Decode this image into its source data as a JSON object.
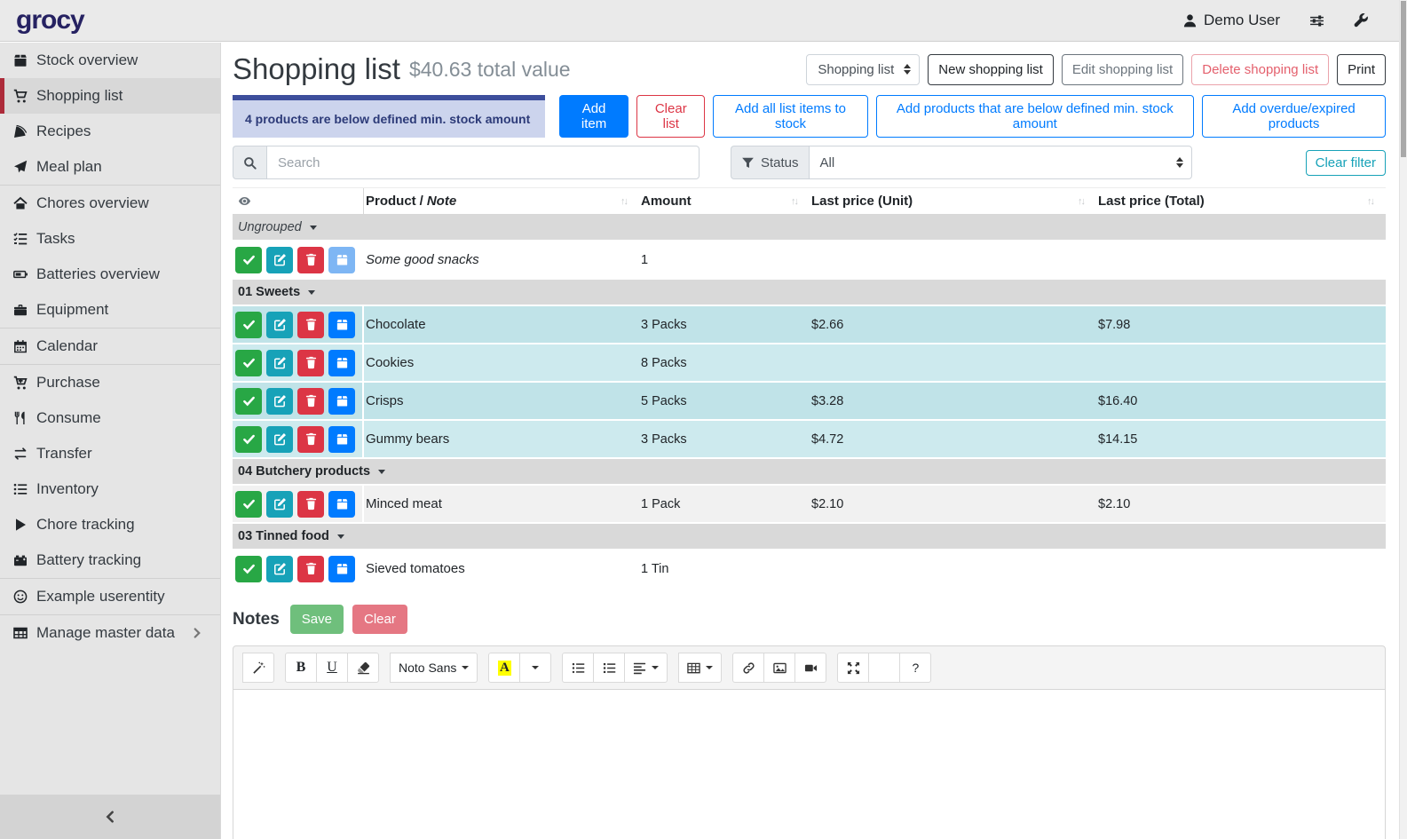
{
  "topbar": {
    "logo": "grocy",
    "user": "Demo User"
  },
  "sidebar": {
    "items": [
      {
        "label": "Stock overview",
        "icon": "box"
      },
      {
        "label": "Shopping list",
        "icon": "cart",
        "active": true
      },
      {
        "label": "Recipes",
        "icon": "pizza"
      },
      {
        "label": "Meal plan",
        "icon": "paper-plane"
      },
      {
        "divider": true
      },
      {
        "label": "Chores overview",
        "icon": "home"
      },
      {
        "label": "Tasks",
        "icon": "tasks"
      },
      {
        "label": "Batteries overview",
        "icon": "battery"
      },
      {
        "label": "Equipment",
        "icon": "toolbox"
      },
      {
        "divider": true
      },
      {
        "label": "Calendar",
        "icon": "calendar"
      },
      {
        "divider": true
      },
      {
        "label": "Purchase",
        "icon": "cart-plus"
      },
      {
        "label": "Consume",
        "icon": "utensils"
      },
      {
        "label": "Transfer",
        "icon": "transfer"
      },
      {
        "label": "Inventory",
        "icon": "list"
      },
      {
        "label": "Chore tracking",
        "icon": "play"
      },
      {
        "label": "Battery tracking",
        "icon": "battery-charging"
      },
      {
        "divider": true
      },
      {
        "label": "Example userentity",
        "icon": "smiley"
      },
      {
        "divider": true
      },
      {
        "label": "Manage master data",
        "icon": "table",
        "chevron": true
      }
    ]
  },
  "header": {
    "title": "Shopping list",
    "subtitle": "$40.63 total value",
    "list_select": "Shopping list",
    "new_button": "New shopping list",
    "edit_button": "Edit shopping list",
    "delete_button": "Delete shopping list",
    "print_button": "Print"
  },
  "actions": {
    "min_stock_badge": "4 products are below defined min. stock amount",
    "add_item": "Add item",
    "clear_list": "Clear list",
    "add_all_to_stock": "Add all list items to stock",
    "add_below_min": "Add products that are below defined min. stock amount",
    "add_overdue": "Add overdue/expired products"
  },
  "filters": {
    "search_placeholder": "Search",
    "status_label": "Status",
    "status_value": "All",
    "clear_filter": "Clear filter"
  },
  "table": {
    "headers": {
      "product": "Product",
      "separator": "/",
      "note": "Note",
      "amount": "Amount",
      "unit": "Last price (Unit)",
      "total": "Last price (Total)"
    },
    "groups": [
      {
        "label": "Ungrouped",
        "italic": true,
        "rows": [
          {
            "name": "Some good snacks",
            "is_note": true,
            "amount": "1",
            "unit": "",
            "total": "",
            "bg": "white",
            "bag_disabled": true
          }
        ]
      },
      {
        "label": "01 Sweets",
        "rows": [
          {
            "name": "Chocolate",
            "amount": "3 Packs",
            "unit": "$2.66",
            "total": "$7.98",
            "bg": "cyan_dark"
          },
          {
            "name": "Cookies",
            "amount": "8 Packs",
            "unit": "",
            "total": "",
            "bg": "cyan_light"
          },
          {
            "name": "Crisps",
            "amount": "5 Packs",
            "unit": "$3.28",
            "total": "$16.40",
            "bg": "cyan_dark"
          },
          {
            "name": "Gummy bears",
            "amount": "3 Packs",
            "unit": "$4.72",
            "total": "$14.15",
            "bg": "cyan_light"
          }
        ]
      },
      {
        "label": "04 Butchery products",
        "rows": [
          {
            "name": "Minced meat",
            "amount": "1 Pack",
            "unit": "$2.10",
            "total": "$2.10",
            "bg": "gray"
          }
        ]
      },
      {
        "label": "03 Tinned food",
        "rows": [
          {
            "name": "Sieved tomatoes",
            "amount": "1 Tin",
            "unit": "",
            "total": "",
            "bg": "white"
          }
        ]
      }
    ]
  },
  "notes": {
    "label": "Notes",
    "save_button": "Save",
    "clear_button": "Clear",
    "toolbar_groups": [
      {
        "items": [
          {
            "name": "magic-wand",
            "type": "icon",
            "icon": "magic"
          }
        ]
      },
      {
        "items": [
          {
            "name": "bold",
            "type": "text",
            "label": "B",
            "cls": "bold-b"
          },
          {
            "name": "underline",
            "type": "text",
            "label": "U",
            "cls": "under-u"
          },
          {
            "name": "eraser",
            "type": "icon",
            "icon": "eraser"
          }
        ]
      },
      {
        "items": [
          {
            "name": "font-family",
            "type": "font",
            "label": "Noto Sans"
          }
        ]
      },
      {
        "items": [
          {
            "name": "font-color",
            "type": "color",
            "label": "A"
          },
          {
            "name": "font-color-caret",
            "type": "caret"
          }
        ]
      },
      {
        "items": [
          {
            "name": "unordered-list",
            "type": "icon",
            "icon": "ul"
          },
          {
            "name": "ordered-list",
            "type": "icon",
            "icon": "ol"
          },
          {
            "name": "paragraph",
            "type": "icon-caret",
            "icon": "align"
          }
        ]
      },
      {
        "items": [
          {
            "name": "insert-table",
            "type": "icon-caret",
            "icon": "grid"
          }
        ]
      },
      {
        "items": [
          {
            "name": "insert-link",
            "type": "icon",
            "icon": "link"
          },
          {
            "name": "insert-picture",
            "type": "icon",
            "icon": "image"
          },
          {
            "name": "insert-video",
            "type": "icon",
            "icon": "video"
          }
        ]
      },
      {
        "items": [
          {
            "name": "fullscreen",
            "type": "icon",
            "icon": "expand"
          },
          {
            "name": "code-view",
            "type": "text",
            "label": "</>"
          },
          {
            "name": "help",
            "type": "text",
            "label": "?"
          }
        ]
      }
    ]
  },
  "colors": {
    "accent_red": "#ad2b3a",
    "primary": "#007bff",
    "success": "#28a745",
    "info": "#17a2b8",
    "danger": "#dc3545",
    "highlight_row_dark": "#c0e3e8",
    "highlight_row_light": "#cdeaee",
    "striped_row": "#f1f1f1",
    "badge_bar": "#3d4e9c",
    "badge_bg": "#ccd4ed",
    "badge_text": "#2c3a78"
  }
}
